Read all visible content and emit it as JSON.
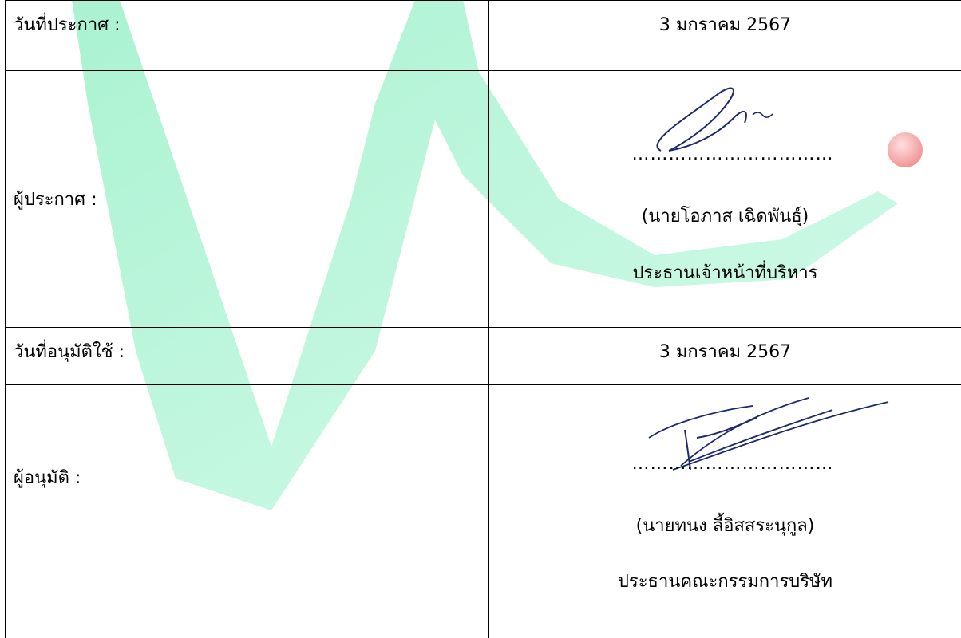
{
  "announce": {
    "date_label": "วันที่ประกาศ :",
    "date_value": "3  มกราคม  2567",
    "announcer_label": "ผู้ประกาศ :",
    "dots": "……………………………",
    "name": "(นายโอภาส  เฉิดพันธุ์)",
    "position": "ประธานเจ้าหน้าที่บริหาร"
  },
  "approve": {
    "date_label": "วันที่อนุมัติใช้ :",
    "date_value": "3  มกราคม  2567",
    "approver_label": "ผู้อนุมัติ :",
    "dots": "……………………………",
    "name": "(นายทนง  ลี้อิสสระนุกูล)",
    "position": "ประธานคณะกรรมการบริษัท"
  },
  "colors": {
    "watermark_green": "#3ee39b",
    "watermark_red": "#f2a6a6",
    "signature_ink": "#1d2a6b",
    "border": "#000000"
  }
}
